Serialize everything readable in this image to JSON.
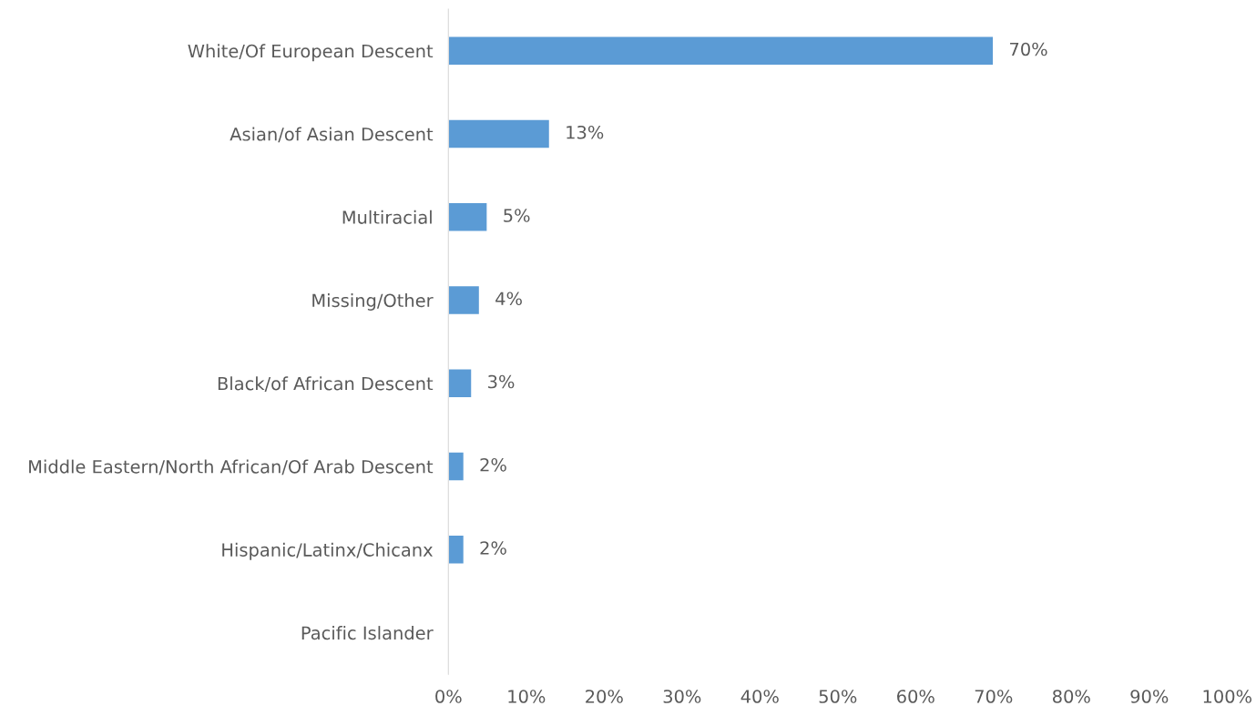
{
  "chart_data": {
    "type": "bar",
    "orientation": "horizontal",
    "categories": [
      "White/Of European Descent",
      "Asian/of Asian Descent",
      "Multiracial",
      "Missing/Other",
      "Black/of African Descent",
      "Middle Eastern/North African/Of Arab Descent",
      "Hispanic/Latinx/Chicanx",
      "Pacific Islander"
    ],
    "values": [
      70,
      13,
      5,
      4,
      3,
      2,
      2,
      null
    ],
    "value_labels": [
      "70%",
      "13%",
      "5%",
      "4%",
      "3%",
      "2%",
      "2%",
      null
    ],
    "color": "#5b9bd5",
    "xlim": [
      0,
      100
    ],
    "xticks": [
      {
        "value": 0,
        "label": "0%"
      },
      {
        "value": 10,
        "label": "10%"
      },
      {
        "value": 20,
        "label": "20%"
      },
      {
        "value": 30,
        "label": "30%"
      },
      {
        "value": 40,
        "label": "40%"
      },
      {
        "value": 50,
        "label": "50%"
      },
      {
        "value": 60,
        "label": "60%"
      },
      {
        "value": 70,
        "label": "70%"
      },
      {
        "value": 80,
        "label": "80%"
      },
      {
        "value": 90,
        "label": "90%"
      },
      {
        "value": 100,
        "label": "100%"
      }
    ],
    "grid": false,
    "legend": false
  }
}
